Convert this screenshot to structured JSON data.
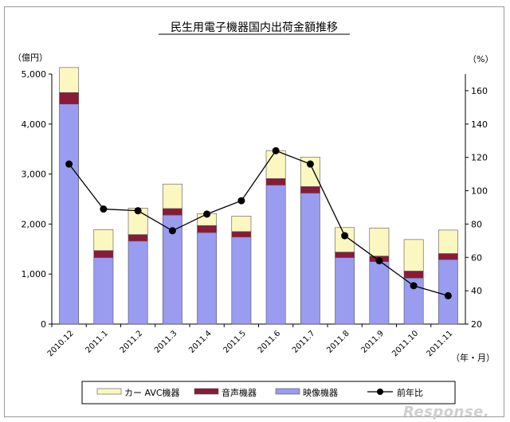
{
  "chart_data": {
    "type": "bar",
    "title": "民生用電子機器国内出荷金額推移",
    "y_left_unit": "（億円）",
    "y_right_unit": "（%）",
    "x_unit": "（年・月）",
    "categories": [
      "2010.12",
      "2011.1",
      "2011.2",
      "2011.3",
      "2011.4",
      "2011.5",
      "2011.6",
      "2011.7",
      "2011.8",
      "2011.9",
      "2011.10",
      "2011.11"
    ],
    "ylim_left": [
      0,
      5000
    ],
    "yticks_left": [
      "0",
      "1,000",
      "2,000",
      "3,000",
      "4,000",
      "5,000"
    ],
    "ylim_right": [
      20,
      170
    ],
    "yticks_right": [
      "20",
      "40",
      "60",
      "80",
      "100",
      "120",
      "140",
      "160"
    ],
    "series": [
      {
        "name": "映像機器",
        "color": "#9a9cf0",
        "values": [
          4400,
          1330,
          1660,
          2180,
          1830,
          1740,
          2780,
          2620,
          1330,
          1250,
          920,
          1290
        ]
      },
      {
        "name": "音声機器",
        "color": "#8a1a3a",
        "values": [
          230,
          140,
          130,
          130,
          140,
          110,
          130,
          130,
          110,
          110,
          140,
          120
        ]
      },
      {
        "name": "カーAVC機器",
        "color": "#fcf6c0",
        "values": [
          500,
          420,
          530,
          490,
          240,
          310,
          560,
          590,
          490,
          560,
          630,
          470
        ]
      }
    ],
    "line_series": {
      "name": "前年比",
      "color": "#000000",
      "values": [
        116,
        89,
        88,
        76,
        86,
        94,
        124,
        116,
        73,
        58,
        43,
        37
      ]
    },
    "legend": [
      "カー AVC機器",
      "音声機器",
      "映像機器",
      "前年比"
    ],
    "legend_placement": "bottom",
    "grid": false
  },
  "watermark": "Response."
}
